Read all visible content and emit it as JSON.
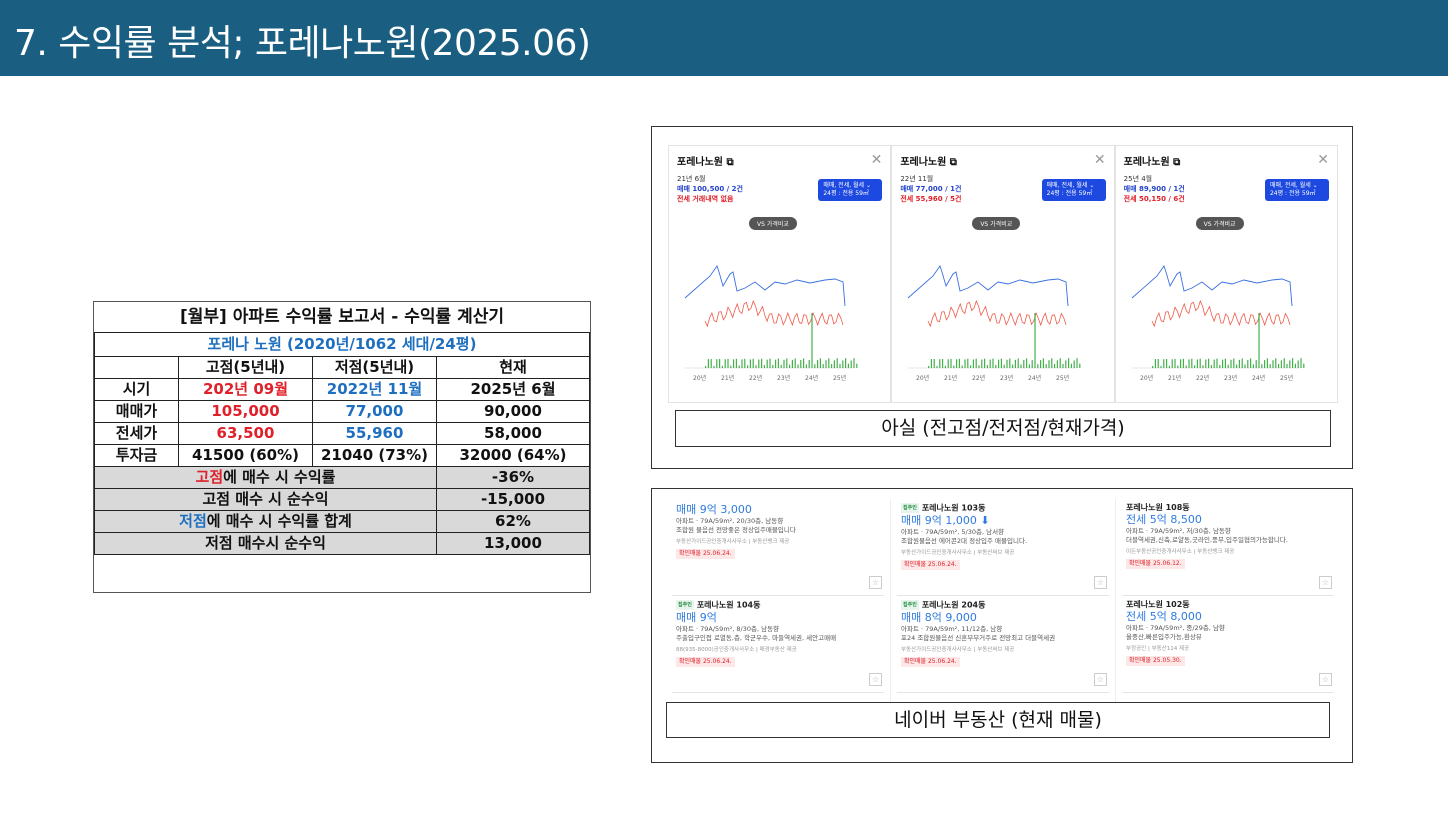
{
  "header": {
    "title": "7. 수익률 분석; 포레나노원(2025.06)"
  },
  "sheet": {
    "title": "[월부] 아파트 수익률 보고서 - 수익률 계산기",
    "subtitle": "포레나 노원 (2020년/1062 세대/24평)",
    "columns": [
      "",
      "고점(5년내)",
      "저점(5년내)",
      "현재"
    ],
    "rows": [
      {
        "label": "시기",
        "high": "202년 09월",
        "low": "2022년 11월",
        "now": "2025년 6월"
      },
      {
        "label": "매매가",
        "high": "105,000",
        "low": "77,000",
        "now": "90,000"
      },
      {
        "label": "전세가",
        "high": "63,500",
        "low": "55,960",
        "now": "58,000"
      },
      {
        "label": "투자금",
        "high": "41500 (60%)",
        "low": "21040 (73%)",
        "now": "32000 (64%)"
      }
    ],
    "summary": [
      {
        "pre": "고점",
        "post": "에 매수 시 수익률",
        "value": "-36%",
        "color": "#e0202a"
      },
      {
        "pre": "",
        "post": "고점 매수 시 순수익",
        "value": "-15,000",
        "color": ""
      },
      {
        "pre": "저점",
        "post": "에 매수 시 수익률 합계",
        "value": "62%",
        "color": "#1e6fc0"
      },
      {
        "pre": "",
        "post": "저점 매수시 순수익",
        "value": "13,000",
        "color": ""
      }
    ]
  },
  "asil": {
    "caption": "아실 (전고점/전저점/현재가격)",
    "vs_label": "VS 가격비교",
    "filter_line1": "매매, 전세, 월세 ⌄",
    "filter_line2": "24평 : 전용 59㎡",
    "x_ticks": [
      "20년",
      "21년",
      "22년",
      "23년",
      "24년",
      "25년"
    ],
    "cards": [
      {
        "name": "포레나노원 ⧉",
        "date": "21년 6월",
        "sale": "매매 100,500 / 2건",
        "jeonse": "전세 거래내역 없음"
      },
      {
        "name": "포레나노원 ⧉",
        "date": "22년 11월",
        "sale": "매매 77,000 / 1건",
        "jeonse": "전세 55,960 / 5건"
      },
      {
        "name": "포레나노원 ⧉",
        "date": "25년 4월",
        "sale": "매매 89,900 / 1건",
        "jeonse": "전세 50,150 / 6건"
      }
    ],
    "colors": {
      "sale": "#3a6fe0",
      "jeonse": "#ef5a4a",
      "volume": "#43b04a"
    }
  },
  "naver": {
    "caption": "네이버 부동산 (현재 매물)",
    "listings": [
      [
        {
          "tag": "",
          "name": "",
          "price": "매매 9억 3,000",
          "desc1": "아파트 · 79A/59m², 20/30층, 남동향",
          "desc2": "조합원 물음선 전망좋은 정상입주매물입니다",
          "broker": "부동산가이드공인중개사사무소 | 부동산뱅크 제공",
          "confirm": "확인매물 25.06.24."
        },
        {
          "tag": "집주인",
          "name": "포레나노원 104동",
          "price": "매매 9억",
          "desc1": "아파트 · 79A/59m², 8/30층, 남동향",
          "desc2": "주출입구인접 로열동,층, 학군우수, 마들역세권, 세안고매매",
          "broker": "88(935-8000)공인중개사사무소 | 매경부동산 제공",
          "confirm": "확인매물 25.06.24."
        }
      ],
      [
        {
          "tag": "집주인",
          "name": "포레나노원 103동",
          "price": "매매 9억 1,000 ⬇",
          "desc1": "아파트 · 79A/59m², 5/30층, 남서향",
          "desc2": "조합원물음선 에어콘2대 정상입주 매물입니다.",
          "broker": "부동산가이드공인중개사사무소 | 부동산써브 제공",
          "confirm": "확인매물 25.06.24."
        },
        {
          "tag": "집주인",
          "name": "포레나노원 204동",
          "price": "매매 8억 9,000",
          "desc1": "아파트 · 79A/59m², 11/12층, 남향",
          "desc2": "포24 조합원물음선 신혼부부거주로 전망최고 더블역세권",
          "broker": "부동산가이드공인중개사사무소 | 부동산써브 제공",
          "confirm": "확인매물 25.06.24."
        }
      ],
      [
        {
          "tag": "",
          "name": "포레나노원 108동",
          "price": "전세 5억 8,500",
          "desc1": "아파트 · 79A/59m², 저/30층, 남동향",
          "desc2": "더블역세권,신축,로얄동,굿라인,풍무,입주일협의가능합니다.",
          "broker": "이든부동산공인중개사사무소 | 부동산뱅크 제공",
          "confirm": "확인매물 25.06.12."
        },
        {
          "tag": "",
          "name": "포레나노원 102동",
          "price": "전세 5억 8,000",
          "desc1": "아파트 · 79A/59m², 중/29층, 남향",
          "desc2": "올중산,빠른입주가능,환상뷰",
          "broker": "부정공인 | 부동산114 제공",
          "confirm": "확인매물 25.05.30."
        }
      ]
    ]
  }
}
